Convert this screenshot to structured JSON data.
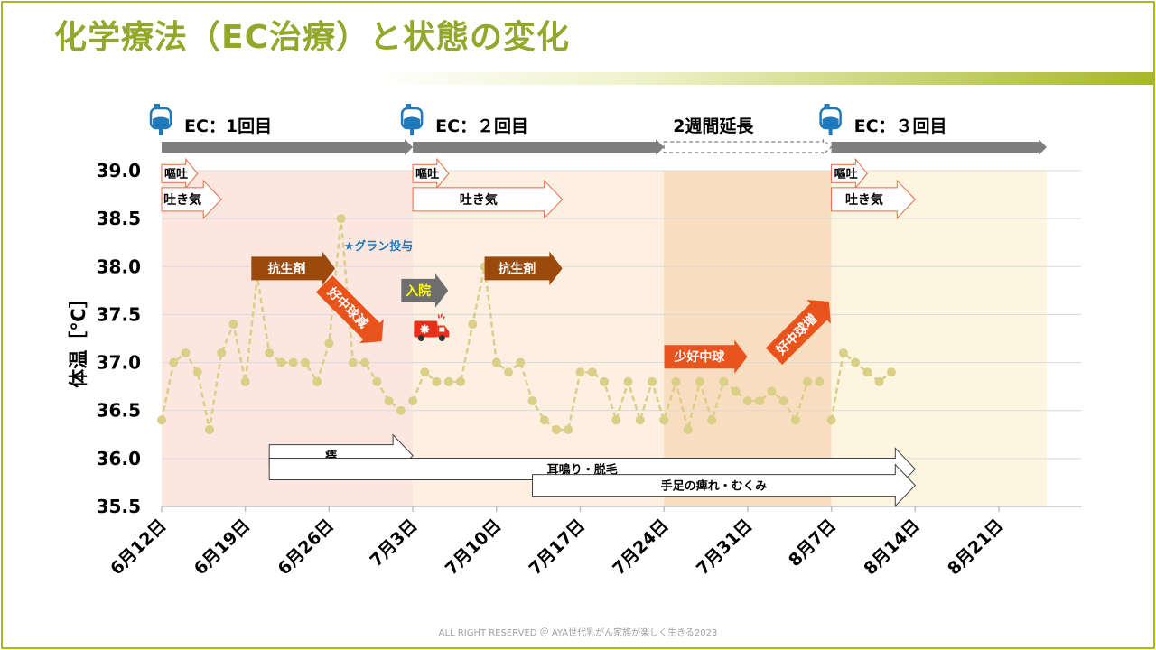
{
  "title": "化学療法（EC治療）と状態の変化",
  "footer": "ALL RIGHT RESERVED ＠ AYA世代乳がん家族が楽しく生きる2023",
  "colors": {
    "title": "#93a82a",
    "accent_border": "#a6b729",
    "line": "#d9cf86",
    "phase1_bg": "#fce6e0",
    "phase2_bg": "#fdf0e3",
    "phase3_bg": "#f9ddc0",
    "phase4_bg": "#fdf5df",
    "timeline": "#7f7f7f",
    "antibiotic": "#9c4a0b",
    "wbc_arrow": "#e8541c",
    "drip_icon": "#1f79bb",
    "g_csf_text": "#1f79bb",
    "admission": "#6e6e6e",
    "admission_text": "#ffff00",
    "ambulance": "#e62e1b"
  },
  "treatment_timeline": [
    {
      "label": "EC：1回目",
      "icon": "iv-drip-bag-icon",
      "start": "2023-06-12",
      "end": "2023-07-03",
      "style": "solid"
    },
    {
      "label": "EC：２回目",
      "icon": "iv-drip-bag-icon",
      "start": "2023-07-03",
      "end": "2023-07-24",
      "style": "solid"
    },
    {
      "label": "2週間延長",
      "icon": "",
      "start": "2023-07-24",
      "end": "2023-08-07",
      "style": "dashed"
    },
    {
      "label": "EC：３回目",
      "icon": "iv-drip-bag-icon",
      "start": "2023-08-07",
      "end": "2023-08-25",
      "style": "solid"
    }
  ],
  "phases": [
    {
      "start": "2023-06-12",
      "end": "2023-07-03",
      "color": "#fce6e0"
    },
    {
      "start": "2023-07-03",
      "end": "2023-07-24",
      "color": "#fdf0e3"
    },
    {
      "start": "2023-07-24",
      "end": "2023-08-07",
      "color": "#f9ddc0"
    },
    {
      "start": "2023-08-07",
      "end": "2023-08-25",
      "color": "#fdf5df"
    }
  ],
  "annotations": {
    "nausea_vomit": [
      {
        "label": "嘔吐",
        "start": "2023-06-12",
        "end": "2023-06-15",
        "y": 38.97
      },
      {
        "label": "嘔吐",
        "start": "2023-07-03",
        "end": "2023-07-06",
        "y": 38.97
      },
      {
        "label": "嘔吐",
        "start": "2023-08-07",
        "end": "2023-08-10",
        "y": 38.97
      }
    ],
    "nausea": [
      {
        "label": "吐き気",
        "start": "2023-06-12",
        "end": "2023-06-17",
        "y": 38.7
      },
      {
        "label": "吐き気",
        "start": "2023-07-03",
        "end": "2023-07-15.5",
        "y": 38.7
      },
      {
        "label": "吐き気",
        "start": "2023-08-07",
        "end": "2023-08-14",
        "y": 38.7
      }
    ],
    "antibiotics": [
      {
        "label": "抗生剤",
        "start": "2023-06-19.5",
        "end": "2023-06-26.5",
        "y": 37.98
      },
      {
        "label": "抗生剤",
        "start": "2023-07-09",
        "end": "2023-07-15.5",
        "y": 37.98
      }
    ],
    "g_csf": {
      "label": "★グラン投与",
      "date": "2023-06-27",
      "y": 38.22
    },
    "admission": {
      "label": "入院",
      "date": "2023-07-04",
      "y": 37.75
    },
    "ambulance": {
      "icon": "ambulance-icon",
      "date": "2023-07-04",
      "y": 37.33
    },
    "wbc_down": {
      "label": "好中球減",
      "date": "2023-06-28",
      "y": 37.52
    },
    "wbc_low": {
      "label": "少好中球",
      "date": "2023-07-27.5",
      "y": 37.06
    },
    "wbc_up": {
      "label": "好中球増",
      "date": "2023-08-04.5",
      "y": 37.35
    },
    "symptoms": [
      {
        "label": "痔",
        "start": "2023-06-21",
        "end": "2023-07-03",
        "y": 36.03
      },
      {
        "label": "耳鳴り・脱毛",
        "start": "2023-06-21",
        "end": "2023-08-14",
        "y": 35.89
      },
      {
        "label": "手足の痺れ・むくみ",
        "start": "2023-07-13",
        "end": "2023-08-14",
        "y": 35.72
      }
    ]
  },
  "chart_data": {
    "type": "line",
    "ylabel": "体温［℃］",
    "xlabel": "",
    "ylim": [
      35.5,
      39.0
    ],
    "yticks": [
      "39.0",
      "38.5",
      "38.0",
      "37.5",
      "37.0",
      "36.5",
      "36.0",
      "35.5"
    ],
    "xlim": [
      "2023-06-12",
      "2023-08-28"
    ],
    "x_ticks": [
      {
        "date": "2023-06-12",
        "label": "6月12日"
      },
      {
        "date": "2023-06-19",
        "label": "6月19日"
      },
      {
        "date": "2023-06-26",
        "label": "6月26日"
      },
      {
        "date": "2023-07-03",
        "label": "7月3日"
      },
      {
        "date": "2023-07-10",
        "label": "7月10日"
      },
      {
        "date": "2023-07-17",
        "label": "7月17日"
      },
      {
        "date": "2023-07-24",
        "label": "7月24日"
      },
      {
        "date": "2023-07-31",
        "label": "7月31日"
      },
      {
        "date": "2023-08-07",
        "label": "8月7日"
      },
      {
        "date": "2023-08-14",
        "label": "8月14日"
      },
      {
        "date": "2023-08-21",
        "label": "8月21日"
      }
    ],
    "grid": true,
    "legend": "none",
    "series": [
      {
        "x": [
          "2023-06-12",
          "2023-06-13",
          "2023-06-14",
          "2023-06-15",
          "2023-06-16",
          "2023-06-17",
          "2023-06-18",
          "2023-06-19",
          "2023-06-20",
          "2023-06-21",
          "2023-06-22",
          "2023-06-23",
          "2023-06-24",
          "2023-06-25",
          "2023-06-26",
          "2023-06-27",
          "2023-06-28",
          "2023-06-29",
          "2023-06-30",
          "2023-07-01",
          "2023-07-02"
        ],
        "values": [
          36.4,
          37.0,
          37.1,
          36.9,
          36.3,
          37.1,
          37.4,
          36.8,
          37.9,
          37.1,
          37.0,
          37.0,
          37.0,
          36.8,
          37.2,
          38.5,
          37.0,
          37.0,
          36.8,
          36.6,
          36.5
        ]
      },
      {
        "x": [
          "2023-07-03",
          "2023-07-04",
          "2023-07-05",
          "2023-07-06",
          "2023-07-07",
          "2023-07-08",
          "2023-07-09",
          "2023-07-10",
          "2023-07-11",
          "2023-07-12",
          "2023-07-13",
          "2023-07-14",
          "2023-07-15",
          "2023-07-16",
          "2023-07-17",
          "2023-07-18",
          "2023-07-19",
          "2023-07-20",
          "2023-07-21",
          "2023-07-22",
          "2023-07-23",
          "2023-07-24",
          "2023-07-25",
          "2023-07-26",
          "2023-07-27",
          "2023-07-28",
          "2023-07-29",
          "2023-07-30",
          "2023-07-31",
          "2023-08-01",
          "2023-08-02",
          "2023-08-03",
          "2023-08-04",
          "2023-08-05",
          "2023-08-06"
        ],
        "values": [
          36.6,
          36.9,
          36.8,
          36.8,
          36.8,
          37.4,
          38.0,
          37.0,
          36.9,
          37.0,
          36.6,
          36.4,
          36.3,
          36.3,
          36.9,
          36.9,
          36.8,
          36.4,
          36.8,
          36.4,
          36.8,
          36.4,
          36.8,
          36.3,
          36.8,
          36.4,
          36.8,
          36.7,
          36.6,
          36.6,
          36.7,
          36.6,
          36.4,
          36.8,
          36.8
        ]
      },
      {
        "x": [
          "2023-08-07",
          "2023-08-08",
          "2023-08-09",
          "2023-08-10",
          "2023-08-11",
          "2023-08-12"
        ],
        "values": [
          36.4,
          37.1,
          37.0,
          36.9,
          36.8,
          36.9
        ]
      }
    ]
  }
}
